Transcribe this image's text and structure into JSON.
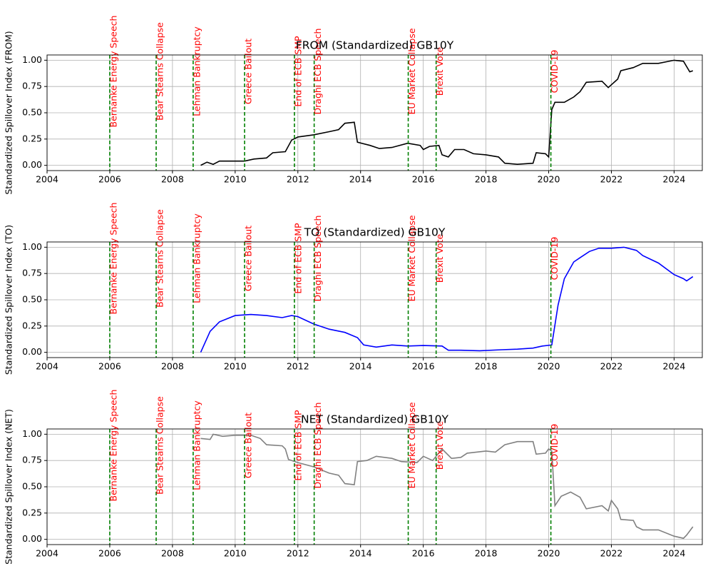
{
  "chart_data": [
    {
      "type": "line",
      "title": "FROM (Standardized) GB10Y",
      "ylabel": "Standardized Spillover Index (FROM)",
      "color": "#000000",
      "x": [
        2008.9,
        2009.1,
        2009.3,
        2009.5,
        2010.0,
        2010.3,
        2010.6,
        2011.0,
        2011.2,
        2011.6,
        2011.8,
        2012.0,
        2012.5,
        2013.0,
        2013.3,
        2013.5,
        2013.8,
        2013.9,
        2014.3,
        2014.6,
        2015.0,
        2015.5,
        2015.9,
        2016.0,
        2016.2,
        2016.5,
        2016.6,
        2016.8,
        2017.0,
        2017.3,
        2017.6,
        2018.0,
        2018.4,
        2018.6,
        2019.0,
        2019.5,
        2019.6,
        2019.9,
        2020.0,
        2020.1,
        2020.2,
        2020.5,
        2020.8,
        2021.0,
        2021.2,
        2021.7,
        2021.9,
        2022.2,
        2022.3,
        2022.7,
        2023.0,
        2023.5,
        2024.0,
        2024.3,
        2024.5,
        2024.6
      ],
      "values": [
        0.0,
        0.03,
        0.01,
        0.04,
        0.04,
        0.04,
        0.06,
        0.07,
        0.12,
        0.13,
        0.24,
        0.27,
        0.29,
        0.32,
        0.34,
        0.4,
        0.41,
        0.22,
        0.19,
        0.16,
        0.17,
        0.21,
        0.19,
        0.15,
        0.18,
        0.19,
        0.1,
        0.08,
        0.15,
        0.15,
        0.11,
        0.1,
        0.08,
        0.02,
        0.01,
        0.02,
        0.12,
        0.11,
        0.08,
        0.53,
        0.6,
        0.6,
        0.65,
        0.7,
        0.79,
        0.8,
        0.74,
        0.82,
        0.9,
        0.93,
        0.97,
        0.97,
        1.0,
        0.99,
        0.89,
        0.9
      ],
      "xlim": [
        2004,
        2024.9
      ],
      "xticks": [
        2004,
        2006,
        2008,
        2010,
        2012,
        2014,
        2016,
        2018,
        2020,
        2022,
        2024
      ],
      "ylim": [
        -0.05,
        1.05
      ],
      "yticks": [
        {
          "value": 0,
          "label": "0.00"
        },
        {
          "value": 0.25,
          "label": "0.25"
        },
        {
          "value": 0.5,
          "label": "0.50"
        },
        {
          "value": 0.75,
          "label": "0.75"
        },
        {
          "value": 1,
          "label": "1.00"
        }
      ],
      "grid": true,
      "annotation_color": "red",
      "annotation_line_color": "green",
      "annotations": [
        {
          "label": "Bernanke Energy Speech",
          "x": 2006.0
        },
        {
          "label": "Bear Stearns Collapse",
          "x": 2007.48
        },
        {
          "label": "Lehman Bankruptcy",
          "x": 2008.66
        },
        {
          "label": "Greece Bailout",
          "x": 2010.3
        },
        {
          "label": "End of ECB SMP",
          "x": 2011.89
        },
        {
          "label": "Draghi ECB Speech",
          "x": 2012.52
        },
        {
          "label": "EU Market Collapse",
          "x": 2015.52
        },
        {
          "label": "Brexit Vote",
          "x": 2016.41
        },
        {
          "label": "COVID-19",
          "x": 2020.07
        }
      ]
    },
    {
      "type": "line",
      "title": "TO (Standardized) GB10Y",
      "ylabel": "Standardized Spillover Index (TO)",
      "color": "#0000ff",
      "x": [
        2008.9,
        2009.2,
        2009.5,
        2010.0,
        2010.5,
        2011.0,
        2011.5,
        2011.8,
        2012.0,
        2012.5,
        2013.0,
        2013.5,
        2013.9,
        2014.1,
        2014.5,
        2015.0,
        2015.5,
        2016.0,
        2016.6,
        2016.8,
        2017.2,
        2017.8,
        2018.5,
        2019.0,
        2019.5,
        2019.8,
        2020.1,
        2020.3,
        2020.5,
        2020.8,
        2021.0,
        2021.3,
        2021.6,
        2022.0,
        2022.4,
        2022.8,
        2023.0,
        2023.5,
        2024.0,
        2024.3,
        2024.4,
        2024.6
      ],
      "values": [
        0.0,
        0.2,
        0.29,
        0.35,
        0.36,
        0.35,
        0.33,
        0.35,
        0.34,
        0.27,
        0.22,
        0.19,
        0.14,
        0.07,
        0.05,
        0.07,
        0.06,
        0.065,
        0.06,
        0.02,
        0.02,
        0.015,
        0.025,
        0.03,
        0.04,
        0.06,
        0.07,
        0.45,
        0.7,
        0.86,
        0.9,
        0.96,
        0.99,
        0.99,
        1.0,
        0.97,
        0.92,
        0.85,
        0.74,
        0.7,
        0.68,
        0.72
      ],
      "xlim": [
        2004,
        2024.9
      ],
      "xticks": [
        2004,
        2006,
        2008,
        2010,
        2012,
        2014,
        2016,
        2018,
        2020,
        2022,
        2024
      ],
      "ylim": [
        -0.05,
        1.05
      ],
      "yticks": [
        {
          "value": 0,
          "label": "0.00"
        },
        {
          "value": 0.25,
          "label": "0.25"
        },
        {
          "value": 0.5,
          "label": "0.50"
        },
        {
          "value": 0.75,
          "label": "0.75"
        },
        {
          "value": 1,
          "label": "1.00"
        }
      ],
      "grid": true,
      "annotation_color": "red",
      "annotation_line_color": "green",
      "annotations": [
        {
          "label": "Bernanke Energy Speech",
          "x": 2006.0
        },
        {
          "label": "Bear Stearns Collapse",
          "x": 2007.48
        },
        {
          "label": "Lehman Bankruptcy",
          "x": 2008.66
        },
        {
          "label": "Greece Bailout",
          "x": 2010.3
        },
        {
          "label": "End of ECB SMP",
          "x": 2011.89
        },
        {
          "label": "Draghi ECB Speech",
          "x": 2012.52
        },
        {
          "label": "EU Market Collapse",
          "x": 2015.52
        },
        {
          "label": "Brexit Vote",
          "x": 2016.41
        },
        {
          "label": "COVID-19",
          "x": 2020.07
        }
      ]
    },
    {
      "type": "line",
      "title": "NET (Standardized) GB10Y",
      "ylabel": "Standardized Spillover Index (NET)",
      "color": "#808080",
      "x": [
        2008.9,
        2009.2,
        2009.3,
        2009.6,
        2010.0,
        2010.5,
        2010.8,
        2011.0,
        2011.5,
        2011.6,
        2011.7,
        2012.0,
        2012.5,
        2013.0,
        2013.3,
        2013.5,
        2013.8,
        2013.9,
        2014.2,
        2014.5,
        2015.0,
        2015.3,
        2015.8,
        2016.0,
        2016.3,
        2016.6,
        2016.9,
        2017.2,
        2017.4,
        2018.0,
        2018.3,
        2018.6,
        2019.0,
        2019.5,
        2019.6,
        2019.9,
        2020.0,
        2020.1,
        2020.2,
        2020.4,
        2020.7,
        2021.0,
        2021.2,
        2021.7,
        2021.9,
        2022.0,
        2022.2,
        2022.3,
        2022.7,
        2022.8,
        2023.0,
        2023.5,
        2024.0,
        2024.3,
        2024.4,
        2024.6
      ],
      "values": [
        0.96,
        0.95,
        1.0,
        0.98,
        0.99,
        0.99,
        0.96,
        0.9,
        0.89,
        0.86,
        0.76,
        0.73,
        0.69,
        0.63,
        0.61,
        0.53,
        0.52,
        0.74,
        0.75,
        0.79,
        0.77,
        0.74,
        0.73,
        0.79,
        0.75,
        0.86,
        0.77,
        0.78,
        0.82,
        0.84,
        0.83,
        0.9,
        0.93,
        0.93,
        0.81,
        0.82,
        0.86,
        0.84,
        0.32,
        0.41,
        0.45,
        0.4,
        0.29,
        0.32,
        0.27,
        0.37,
        0.29,
        0.19,
        0.18,
        0.12,
        0.09,
        0.09,
        0.03,
        0.01,
        0.04,
        0.12
      ],
      "xlim": [
        2004,
        2024.9
      ],
      "xticks": [
        2004,
        2006,
        2008,
        2010,
        2012,
        2014,
        2016,
        2018,
        2020,
        2022,
        2024
      ],
      "ylim": [
        -0.05,
        1.05
      ],
      "yticks": [
        {
          "value": 0,
          "label": "0.00"
        },
        {
          "value": 0.25,
          "label": "0.25"
        },
        {
          "value": 0.5,
          "label": "0.50"
        },
        {
          "value": 0.75,
          "label": "0.75"
        },
        {
          "value": 1,
          "label": "1.00"
        }
      ],
      "grid": true,
      "annotation_color": "red",
      "annotation_line_color": "green",
      "annotations": [
        {
          "label": "Bernanke Energy Speech",
          "x": 2006.0
        },
        {
          "label": "Bear Stearns Collapse",
          "x": 2007.48
        },
        {
          "label": "Lehman Bankruptcy",
          "x": 2008.66
        },
        {
          "label": "Greece Bailout",
          "x": 2010.3
        },
        {
          "label": "End of ECB SMP",
          "x": 2011.89
        },
        {
          "label": "Draghi ECB Speech",
          "x": 2012.52
        },
        {
          "label": "EU Market Collapse",
          "x": 2015.52
        },
        {
          "label": "Brexit Vote",
          "x": 2016.41
        },
        {
          "label": "COVID-19",
          "x": 2020.07
        }
      ]
    }
  ]
}
